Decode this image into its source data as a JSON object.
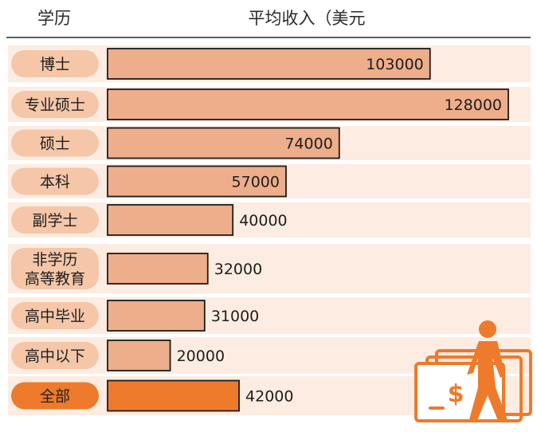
{
  "chart_data": {
    "type": "bar",
    "orientation": "horizontal",
    "header_category": "学历",
    "header_value": "平均收入（美元",
    "categories": [
      [
        "博士"
      ],
      [
        "专业硕士"
      ],
      [
        "硕士"
      ],
      [
        "本科"
      ],
      [
        "副学士"
      ],
      [
        "非学历",
        "高等教育"
      ],
      [
        "高中毕业"
      ],
      [
        "高中以下"
      ],
      [
        "全部"
      ]
    ],
    "values": [
      103000,
      128000,
      74000,
      57000,
      40000,
      32000,
      31000,
      20000,
      42000
    ],
    "value_labels": [
      "103000",
      "128000",
      "74000",
      "57000",
      "40000",
      "32000",
      "31000",
      "20000",
      "42000"
    ],
    "highlight_index": 8,
    "colors": {
      "bar": "#eeae8b",
      "bar_highlight": "#ee7a2b",
      "row_band": "#fdece1",
      "pill": "#f5c6a8",
      "pill_highlight": "#ee7a2b",
      "bar_stroke": "#1c1c1c",
      "icon": "#ee7a2b"
    },
    "icon": "person-carrying-money-icon"
  }
}
